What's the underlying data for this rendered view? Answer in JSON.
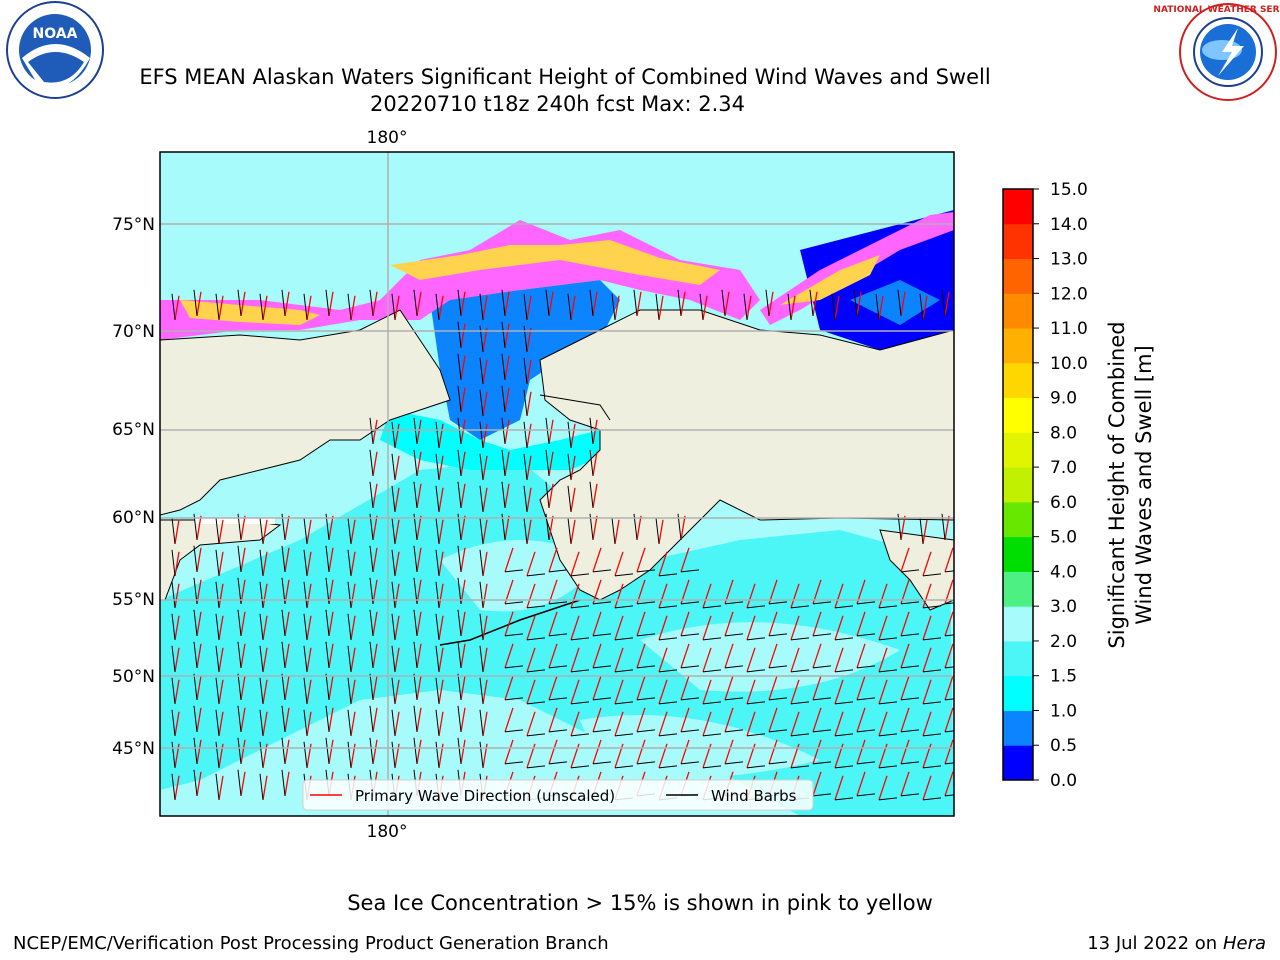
{
  "title_line1": "EFS MEAN Alaskan Waters Significant Height of Combined Wind Waves and Swell",
  "title_line2": "20220710 t18z 240h fcst   Max: 2.34",
  "logos": {
    "left": "NOAA",
    "right": "NATIONAL WEATHER SERVICE"
  },
  "map": {
    "lon_labels": [
      "180°",
      "180°"
    ],
    "lat_labels": [
      "75°N",
      "70°N",
      "65°N",
      "60°N",
      "55°N",
      "50°N",
      "45°N"
    ],
    "legend": {
      "wave_dir": "Primary Wave Direction (unscaled)",
      "wind_barbs": "Wind Barbs"
    },
    "colors": {
      "land": "#efefdf",
      "ocean_light": "#a8fbfb",
      "ocean_mid": "#4cf6f6",
      "ocean_dark": "#0c84ff",
      "ice_pink": "#ff66ff",
      "ice_yellow": "#ffd34d",
      "arrow": "#ff0000"
    }
  },
  "colorbar": {
    "ticks": [
      "0.0",
      "0.5",
      "1.0",
      "1.5",
      "2.0",
      "3.0",
      "4.0",
      "5.0",
      "6.0",
      "7.0",
      "8.0",
      "9.0",
      "10.0",
      "11.0",
      "12.0",
      "13.0",
      "14.0",
      "15.0"
    ],
    "colors": [
      "#0000ff",
      "#0c84ff",
      "#00ffff",
      "#4cf6f6",
      "#a8fbfb",
      "#4df083",
      "#00dd00",
      "#66e800",
      "#c1f000",
      "#e1f500",
      "#ffff00",
      "#ffd700",
      "#ffb000",
      "#ff8a00",
      "#ff6400",
      "#ff3300",
      "#ff0000"
    ],
    "label_line1": "Significant Height of Combined",
    "label_line2": "Wind Waves and Swell [m]"
  },
  "footer": {
    "ice_note": "Sea Ice Concentration > 15% is shown in pink to yellow",
    "left": "NCEP/EMC/Verification Post Processing Product Generation Branch",
    "right_date": "13 Jul 2022 on ",
    "right_host": "Hera"
  }
}
